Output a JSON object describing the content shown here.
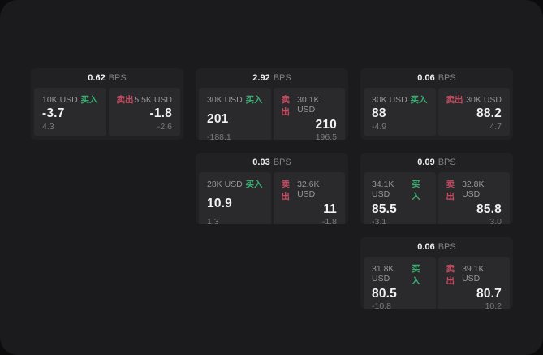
{
  "labels": {
    "bps_unit": "BPS",
    "buy": "买入",
    "sell": "卖出"
  },
  "colors": {
    "page_background": "#1b1b1d",
    "outer_backdrop": "#0c0c0c",
    "card_background": "#212123",
    "panel_background": "#2a2a2c",
    "buy_green": "#36ae70",
    "sell_red": "#c74a62",
    "primary_text": "#f2f2f4",
    "secondary_text": "#96969b"
  },
  "cards": [
    {
      "bps": "0.62",
      "buy": {
        "amount": "10K USD",
        "value": "-3.7",
        "sub": "4.3"
      },
      "sell": {
        "amount": "5.5K USD",
        "value": "-1.8",
        "sub": "-2.6"
      }
    },
    {
      "bps": "2.92",
      "buy": {
        "amount": "30K USD",
        "value": "201",
        "sub": "-188.1"
      },
      "sell": {
        "amount": "30.1K USD",
        "value": "210",
        "sub": "196.5"
      }
    },
    {
      "bps": "0.06",
      "buy": {
        "amount": "30K USD",
        "value": "88",
        "sub": "-4.9"
      },
      "sell": {
        "amount": "30K USD",
        "value": "88.2",
        "sub": "4.7"
      }
    },
    {
      "bps": "0.03",
      "buy": {
        "amount": "28K USD",
        "value": "10.9",
        "sub": "1.3"
      },
      "sell": {
        "amount": "32.6K USD",
        "value": "11",
        "sub": "-1.8"
      }
    },
    {
      "bps": "0.09",
      "buy": {
        "amount": "34.1K USD",
        "value": "85.5",
        "sub": "-3.1"
      },
      "sell": {
        "amount": "32.8K USD",
        "value": "85.8",
        "sub": "3.0"
      }
    },
    {
      "bps": "0.06",
      "buy": {
        "amount": "31.8K USD",
        "value": "80.5",
        "sub": "-10.8"
      },
      "sell": {
        "amount": "39.1K USD",
        "value": "80.7",
        "sub": "10.2"
      }
    }
  ]
}
